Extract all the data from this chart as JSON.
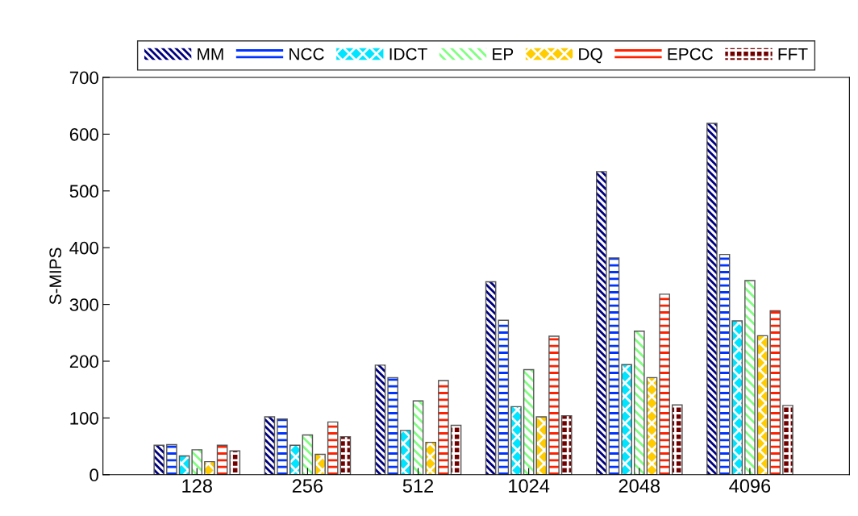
{
  "chart_data": {
    "type": "bar",
    "ylabel": "S-MIPS",
    "categories": [
      "128",
      "256",
      "512",
      "1024",
      "2048",
      "4096"
    ],
    "series": [
      {
        "name": "MM",
        "color": "#000080",
        "values": [
          52,
          102,
          193,
          340,
          534,
          619
        ]
      },
      {
        "name": "NCC",
        "color": "#0033ff",
        "values": [
          53,
          98,
          171,
          272,
          382,
          388
        ]
      },
      {
        "name": "IDCT",
        "color": "#00e5ff",
        "values": [
          33,
          52,
          78,
          120,
          194,
          271
        ]
      },
      {
        "name": "EP",
        "color": "#80ff80",
        "values": [
          44,
          70,
          130,
          185,
          253,
          342
        ]
      },
      {
        "name": "DQ",
        "color": "#ffcc00",
        "values": [
          23,
          36,
          57,
          102,
          171,
          245
        ]
      },
      {
        "name": "EPCC",
        "color": "#ff2000",
        "values": [
          52,
          93,
          166,
          244,
          318,
          289
        ]
      },
      {
        "name": "FFT",
        "color": "#700000",
        "values": [
          42,
          67,
          87,
          104,
          123,
          122
        ]
      }
    ],
    "ylim": [
      0,
      700
    ],
    "yticks": [
      0,
      100,
      200,
      300,
      400,
      500,
      600,
      700
    ],
    "grid": false,
    "legend": "top"
  }
}
